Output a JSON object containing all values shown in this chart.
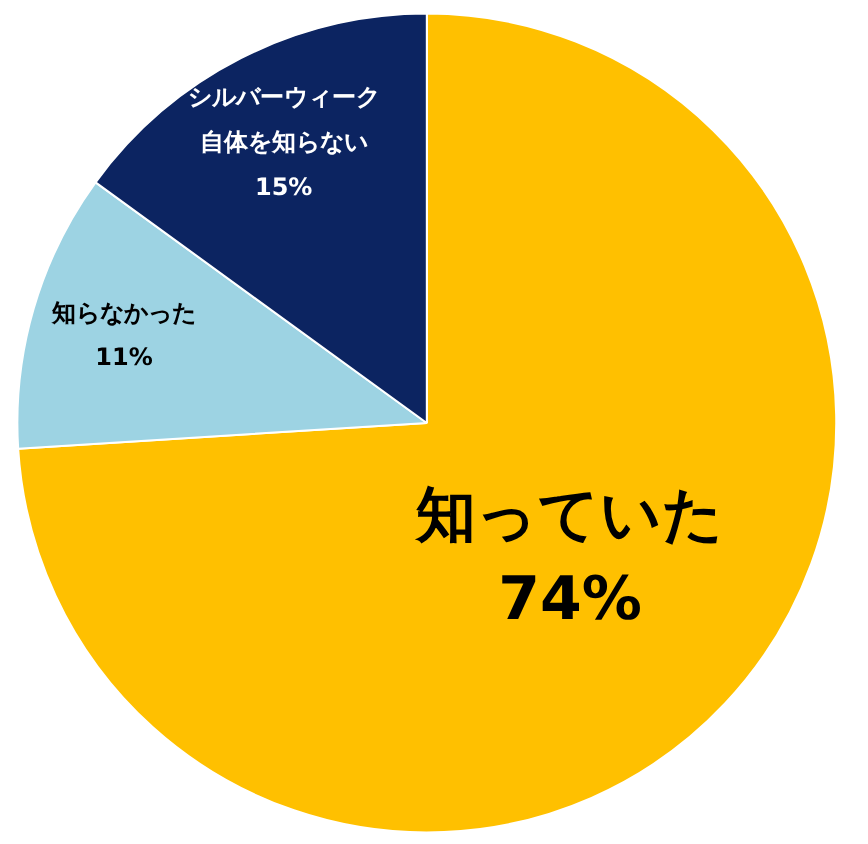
{
  "chart_data": {
    "type": "pie",
    "categories": [
      "知っていた",
      "知らなかった",
      "シルバーウィーク自体を知らない"
    ],
    "values": [
      74,
      11,
      15
    ],
    "value_labels": [
      "74%",
      "11%",
      "15%"
    ],
    "colors": [
      "#ffc000",
      "#9dd3e3",
      "#0c2461"
    ]
  }
}
